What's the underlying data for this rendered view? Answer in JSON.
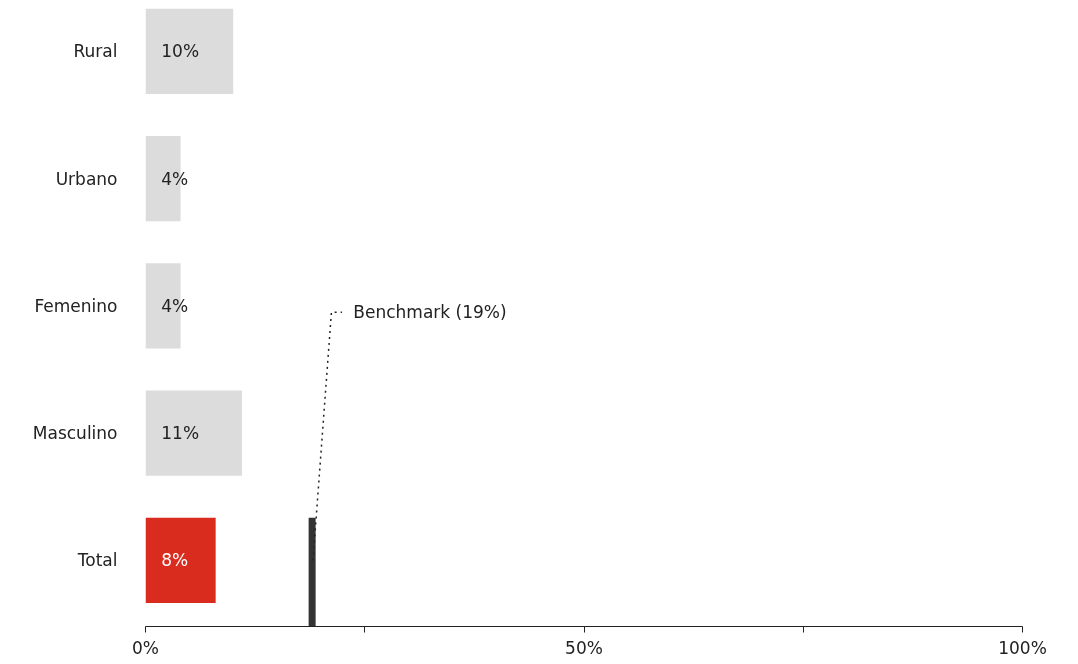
{
  "chart_data": {
    "type": "bar",
    "orientation": "horizontal",
    "categories": [
      "Rural",
      "Urbano",
      "Femenino",
      "Masculino",
      "Total"
    ],
    "values": [
      10,
      4,
      4,
      11,
      8
    ],
    "colors": [
      "#dcdcdc",
      "#dcdcdc",
      "#dcdcdc",
      "#dcdcdc",
      "#d92b1e"
    ],
    "value_labels": [
      "10%",
      "4%",
      "4%",
      "11%",
      "8%"
    ],
    "xlim": [
      0,
      100
    ],
    "xticks": [
      {
        "value": 0,
        "label": "0%"
      },
      {
        "value": 25,
        "label": null
      },
      {
        "value": 50,
        "label": "50%"
      },
      {
        "value": 75,
        "label": null
      },
      {
        "value": 100,
        "label": "100%"
      }
    ],
    "ref_lines": [
      {
        "axis": "x",
        "value": 19,
        "label": "Benchmark (19%)",
        "color": "#333333"
      }
    ],
    "grid": false
  }
}
